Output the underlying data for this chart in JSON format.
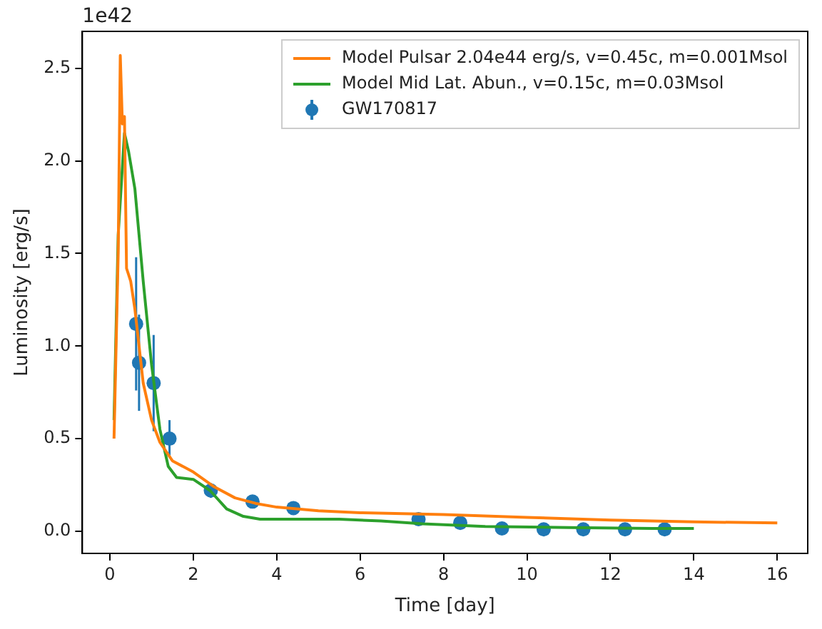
{
  "chart_data": {
    "type": "line",
    "xlabel": "Time [day]",
    "ylabel": "Luminosity [erg/s]",
    "annotations": [
      "1e42"
    ],
    "xlim": [
      -0.66,
      16.73
    ],
    "xticks": [
      0,
      2,
      4,
      6,
      8,
      10,
      12,
      14,
      16
    ],
    "ylim": [
      -0.12,
      2.7
    ],
    "yticks": [
      {
        "value": 0,
        "label": "0.0"
      },
      0.5,
      {
        "value": 1,
        "label": "1.0"
      },
      1.5,
      {
        "value": 2,
        "label": "2.0"
      },
      2.5
    ],
    "grid": false,
    "legend": "top right",
    "series": [
      {
        "name": "Model Pulsar 2.04e44 erg/s, v=0.45c, m=0.001Msol",
        "type": "line",
        "marker": "none",
        "color": "#ff7f0e",
        "x": [
          0.1,
          0.2,
          0.25,
          0.3,
          0.35,
          0.4,
          0.5,
          0.6,
          0.8,
          1.0,
          1.2,
          1.5,
          2.0,
          2.5,
          3,
          3.5,
          4,
          5,
          6,
          8,
          10,
          12,
          14,
          16
        ],
        "values": [
          0.5,
          1.5,
          2.57,
          2.2,
          2.24,
          1.42,
          1.35,
          1.2,
          0.8,
          0.6,
          0.48,
          0.38,
          0.32,
          0.24,
          0.18,
          0.15,
          0.13,
          0.11,
          0.1,
          0.09,
          0.075,
          0.06,
          0.05,
          0.045
        ]
      },
      {
        "name": "Model Mid Lat. Abun., v=0.15c, m=0.03Msol",
        "type": "line",
        "marker": "none",
        "color": "#2ca02c",
        "x": [
          0.1,
          0.2,
          0.35,
          0.45,
          0.6,
          0.8,
          1.0,
          1.2,
          1.4,
          1.6,
          2.0,
          2.4,
          2.8,
          3.2,
          3.6,
          4.5,
          5.5,
          6.5,
          7.5,
          9,
          11,
          13,
          14
        ],
        "values": [
          0.6,
          1.6,
          2.15,
          2.05,
          1.85,
          1.35,
          0.9,
          0.55,
          0.35,
          0.29,
          0.28,
          0.22,
          0.12,
          0.08,
          0.065,
          0.065,
          0.065,
          0.055,
          0.04,
          0.025,
          0.02,
          0.015,
          0.015
        ]
      },
      {
        "name": "GW170817",
        "type": "scatter",
        "marker": "circle",
        "color": "#1f77b4",
        "x": [
          0.63,
          0.7,
          1.05,
          1.43,
          2.42,
          3.42,
          4.4,
          7.4,
          8.4,
          9.4,
          10.4,
          11.35,
          12.35,
          13.3
        ],
        "values": [
          1.12,
          0.91,
          0.8,
          0.5,
          0.22,
          0.16,
          0.125,
          0.065,
          0.045,
          0.015,
          0.01,
          0.01,
          0.01,
          0.01
        ],
        "errors": [
          0.36,
          0.26,
          0.26,
          0.1,
          0.04,
          null,
          null,
          null,
          null,
          null,
          null,
          null,
          null,
          null
        ]
      }
    ]
  }
}
